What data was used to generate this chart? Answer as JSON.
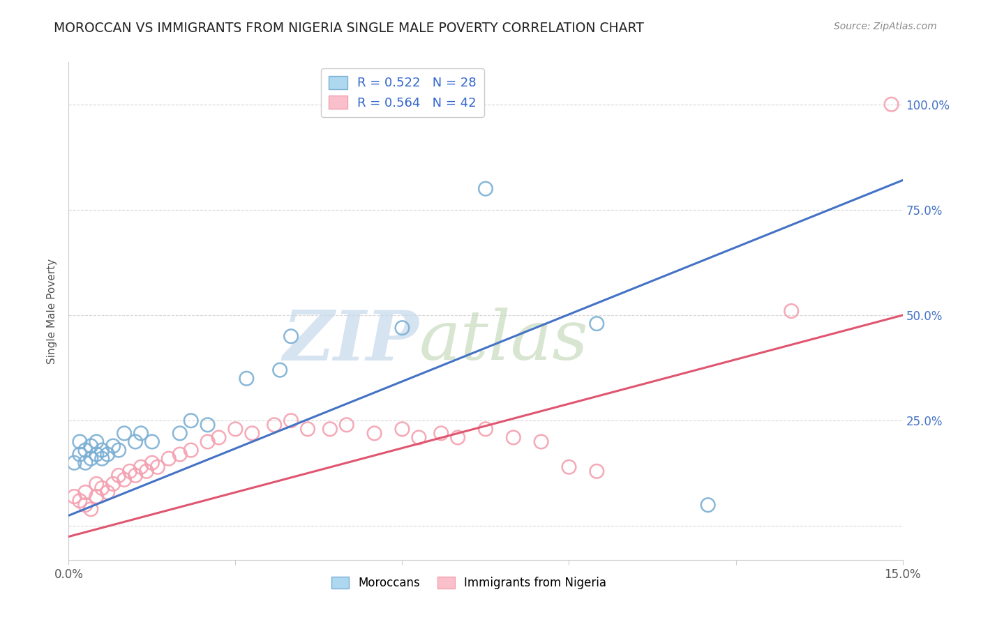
{
  "title": "MOROCCAN VS IMMIGRANTS FROM NIGERIA SINGLE MALE POVERTY CORRELATION CHART",
  "source": "Source: ZipAtlas.com",
  "ylabel": "Single Male Poverty",
  "yticks": [
    0.0,
    0.25,
    0.5,
    0.75,
    1.0
  ],
  "ytick_labels": [
    "",
    "25.0%",
    "50.0%",
    "75.0%",
    "100.0%"
  ],
  "xlim": [
    0.0,
    0.15
  ],
  "ylim": [
    -0.08,
    1.1
  ],
  "moroccan_R": 0.522,
  "moroccan_N": 28,
  "nigeria_R": 0.564,
  "nigeria_N": 42,
  "moroccan_color": "#7BAFD4",
  "nigeria_color": "#F4A0B0",
  "moroccan_line_color": "#4472C4",
  "nigeria_line_color": "#E05570",
  "background_color": "#FFFFFF",
  "legend_moroccan": "Moroccans",
  "legend_nigeria": "Immigrants from Nigeria",
  "moroccan_x": [
    0.001,
    0.002,
    0.002,
    0.003,
    0.003,
    0.004,
    0.004,
    0.005,
    0.005,
    0.006,
    0.006,
    0.007,
    0.008,
    0.009,
    0.01,
    0.012,
    0.013,
    0.015,
    0.02,
    0.022,
    0.025,
    0.032,
    0.038,
    0.04,
    0.06,
    0.075,
    0.095,
    0.115
  ],
  "moroccan_y": [
    0.15,
    0.17,
    0.2,
    0.15,
    0.18,
    0.16,
    0.19,
    0.17,
    0.2,
    0.16,
    0.18,
    0.17,
    0.19,
    0.18,
    0.22,
    0.2,
    0.22,
    0.2,
    0.22,
    0.25,
    0.24,
    0.35,
    0.37,
    0.45,
    0.47,
    0.8,
    0.48,
    0.05
  ],
  "nigeria_x": [
    0.001,
    0.002,
    0.003,
    0.003,
    0.004,
    0.005,
    0.005,
    0.006,
    0.007,
    0.008,
    0.009,
    0.01,
    0.011,
    0.012,
    0.013,
    0.014,
    0.015,
    0.016,
    0.018,
    0.02,
    0.022,
    0.025,
    0.027,
    0.03,
    0.033,
    0.037,
    0.04,
    0.043,
    0.047,
    0.05,
    0.055,
    0.06,
    0.063,
    0.067,
    0.07,
    0.075,
    0.08,
    0.085,
    0.09,
    0.095,
    0.13,
    0.148
  ],
  "nigeria_y": [
    0.07,
    0.06,
    0.05,
    0.08,
    0.04,
    0.07,
    0.1,
    0.09,
    0.08,
    0.1,
    0.12,
    0.11,
    0.13,
    0.12,
    0.14,
    0.13,
    0.15,
    0.14,
    0.16,
    0.17,
    0.18,
    0.2,
    0.21,
    0.23,
    0.22,
    0.24,
    0.25,
    0.23,
    0.23,
    0.24,
    0.22,
    0.23,
    0.21,
    0.22,
    0.21,
    0.23,
    0.21,
    0.2,
    0.14,
    0.13,
    0.51,
    1.0
  ],
  "moroccan_line_x": [
    0.0,
    0.15
  ],
  "moroccan_line_y": [
    0.025,
    0.82
  ],
  "nigeria_line_x": [
    0.0,
    0.15
  ],
  "nigeria_line_y": [
    -0.025,
    0.5
  ]
}
